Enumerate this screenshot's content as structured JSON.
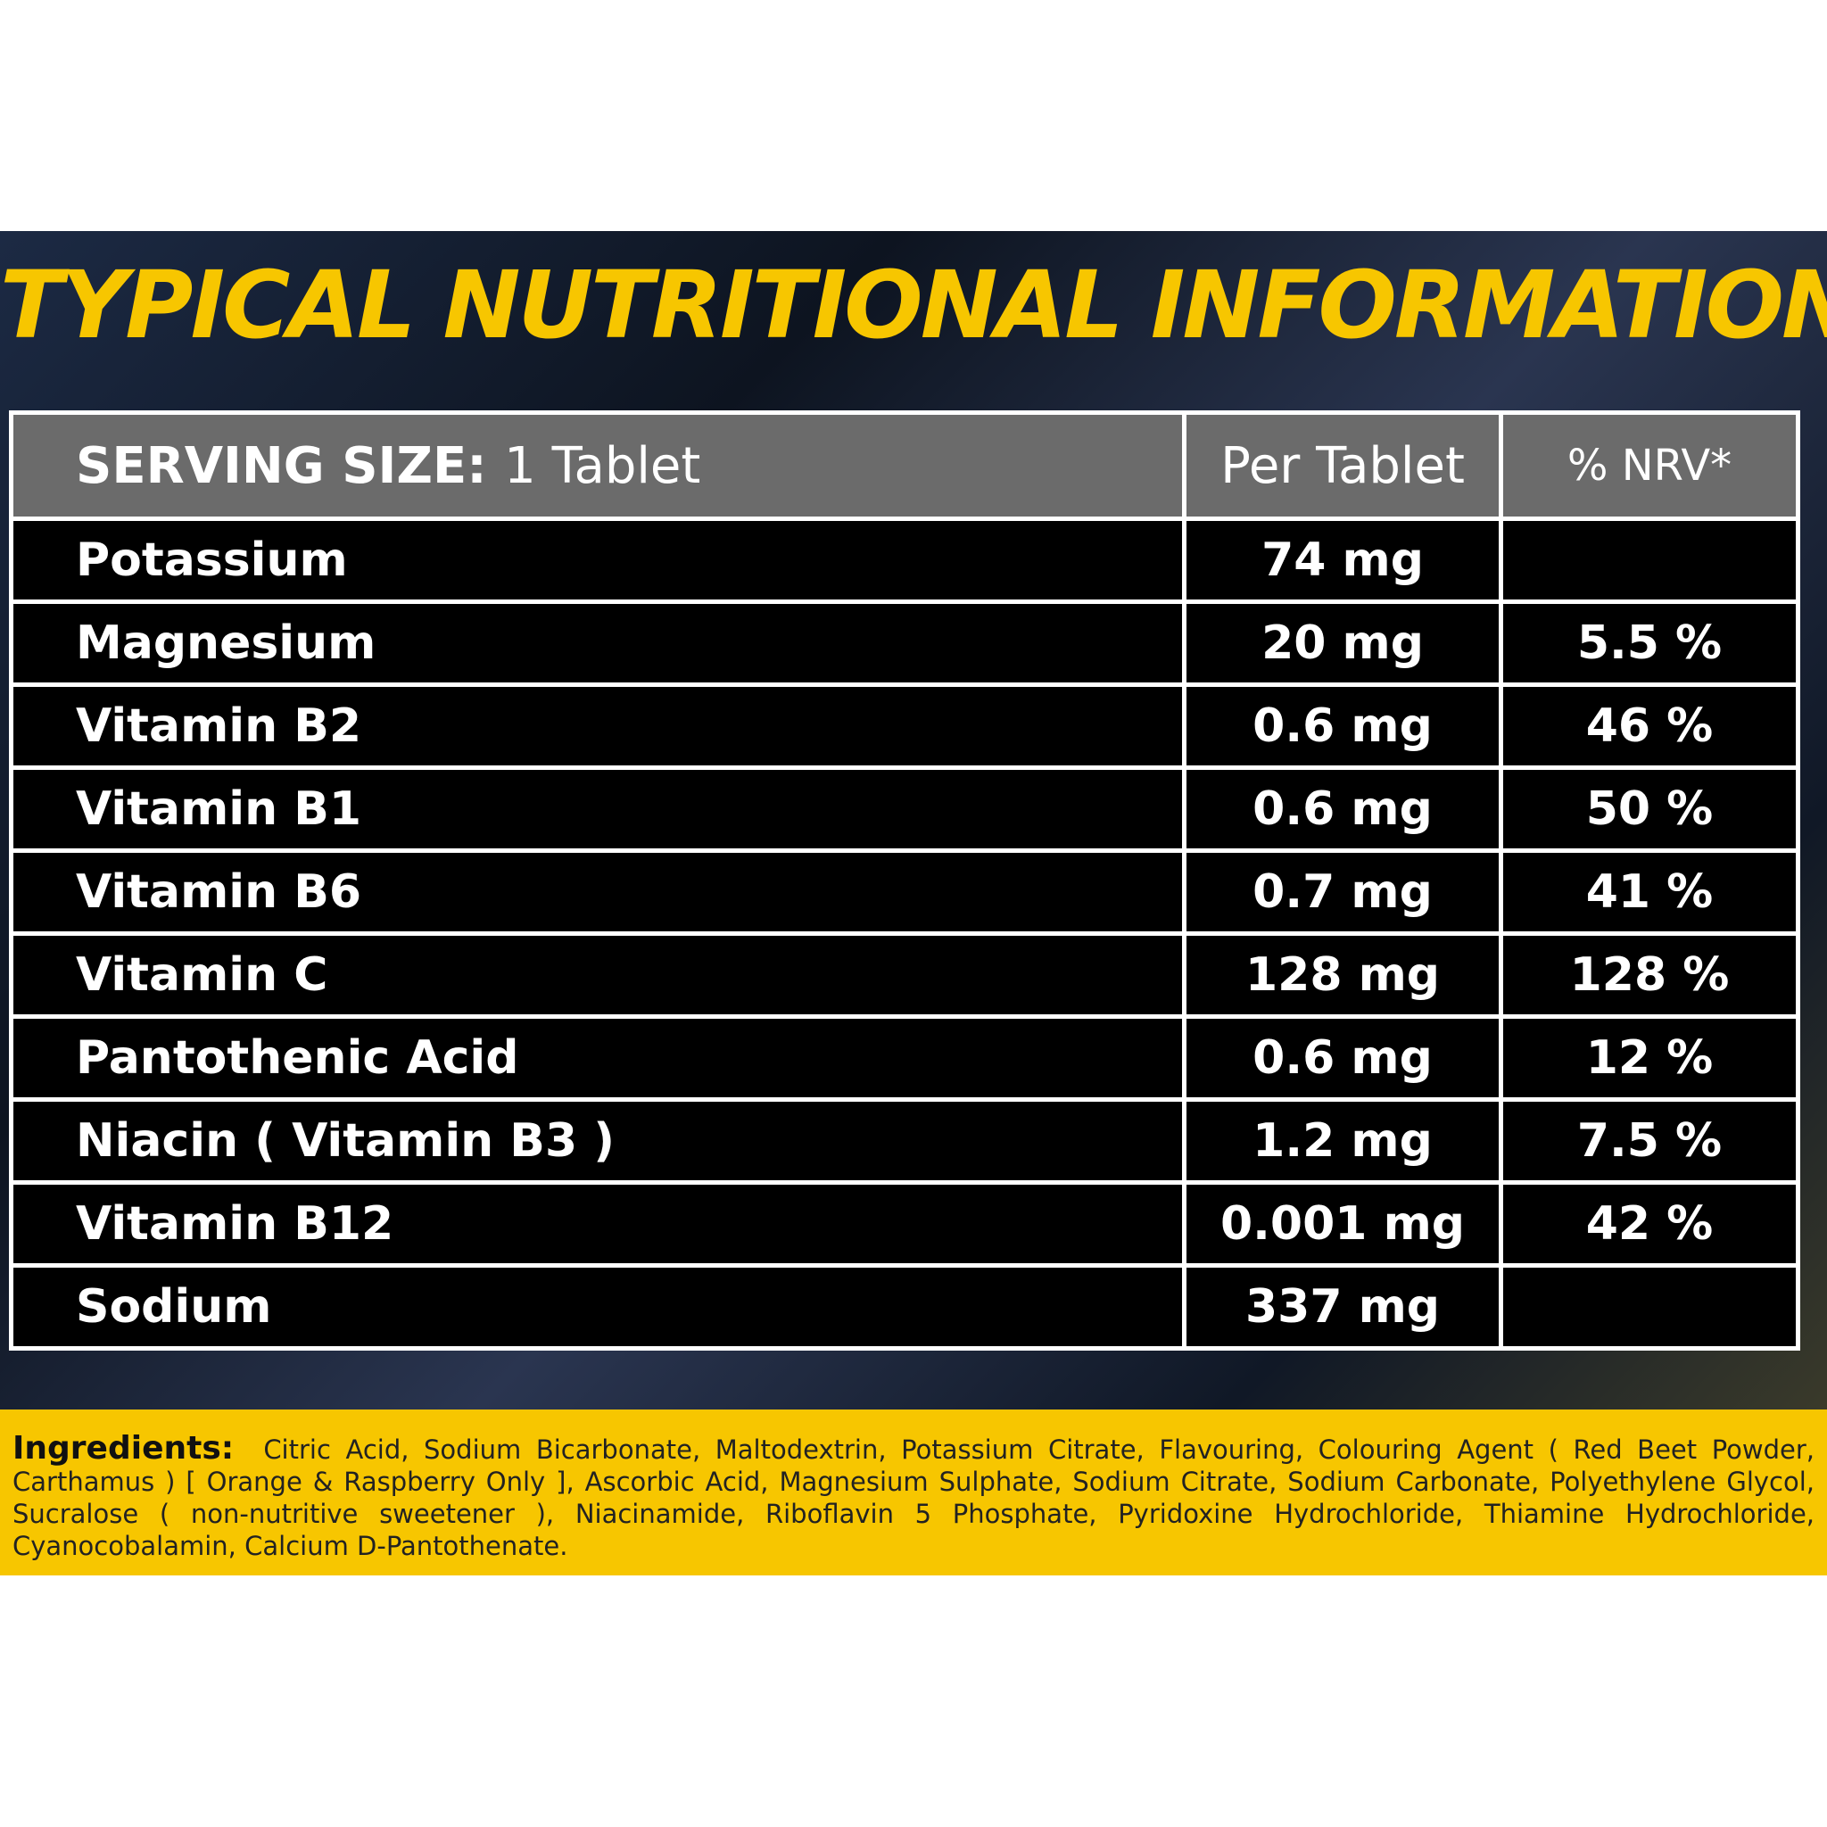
{
  "title": "TYPICAL NUTRITIONAL INFORMATION",
  "table": {
    "header": {
      "serving_label": "SERVING SIZE:",
      "serving_value": "1 Tablet",
      "per": "Per Tablet",
      "nrv": "% NRV*"
    },
    "rows": [
      [
        "Potassium",
        "74 mg",
        null
      ],
      [
        "Magnesium",
        "20 mg",
        "5.5 %"
      ],
      [
        "Vitamin B2",
        "0.6 mg",
        "46 %"
      ],
      [
        "Vitamin B1",
        "0.6 mg",
        "50 %"
      ],
      [
        "Vitamin B6",
        "0.7 mg",
        "41 %"
      ],
      [
        "Vitamin C",
        "128 mg",
        "128 %"
      ],
      [
        "Pantothenic Acid",
        "0.6 mg",
        "12 %"
      ],
      [
        "Niacin ( Vitamin B3 )",
        "1.2 mg",
        "7.5 %"
      ],
      [
        "Vitamin B12",
        "0.001 mg",
        "42 %"
      ],
      [
        "Sodium",
        "337 mg",
        null
      ]
    ]
  },
  "ingredients": {
    "label": "Ingredients:",
    "text": "Citric Acid, Sodium Bicarbonate, Maltodextrin, Potassium Citrate, Flavouring, Colouring Agent ( Red Beet Powder, Carthamus ) [ Orange & Raspberry Only ], Ascorbic Acid, Magnesium Sulphate, Sodium Citrate, Sodium Carbonate, Polyethylene Glycol, Sucralose ( non-nutritive sweetener ), Niacinamide, Riboflavin 5 Phosphate, Pyridoxine Hydrochloride, Thiamine Hydrochloride, Cyanocobalamin, Calcium D-Pantothenate."
  }
}
